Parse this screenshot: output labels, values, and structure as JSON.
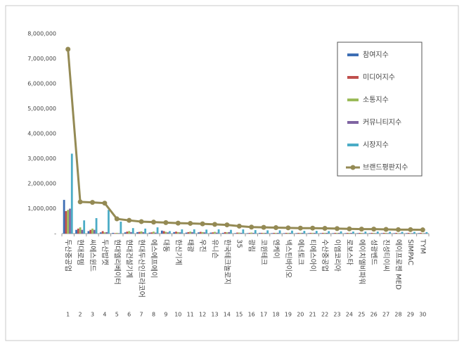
{
  "chart_data": {
    "type": "bar-line",
    "categories": [
      "두산중공업",
      "현대로템",
      "씨에스윈드",
      "두산밥캣",
      "현대엘리베이터",
      "현대건설기계",
      "현대두산인프라코어",
      "에스에프에이",
      "대동",
      "한신기계",
      "태광",
      "우진",
      "유니슨",
      "한국테크놀로지",
      "35",
      "광림",
      "코윈테크",
      "엔케이",
      "넥스틴바이오",
      "에너토크",
      "티에스아이",
      "수산중공업",
      "이엠코리아",
      "로보스타",
      "에이치엘비파워",
      "성광벤드",
      "진성티이씨",
      "에이프로젠 MED",
      "SIMPAC",
      "TYM"
    ],
    "ranks": [
      1,
      2,
      3,
      4,
      5,
      6,
      7,
      8,
      9,
      10,
      11,
      12,
      13,
      14,
      15,
      16,
      17,
      18,
      19,
      20,
      21,
      22,
      23,
      24,
      25,
      26,
      27,
      28,
      29,
      30
    ],
    "series": [
      {
        "name": "참여지수",
        "color": "#3d6eb4",
        "values": [
          1350000,
          150000,
          100000,
          50000,
          30000,
          50000,
          60000,
          40000,
          120000,
          60000,
          40000,
          50000,
          40000,
          30000,
          20000,
          20000,
          30000,
          20000,
          20000,
          20000,
          20000,
          20000,
          20000,
          20000,
          20000,
          20000,
          20000,
          20000,
          20000,
          20000
        ]
      },
      {
        "name": "미디어지수",
        "color": "#c0504d",
        "values": [
          900000,
          200000,
          150000,
          100000,
          20000,
          80000,
          70000,
          50000,
          100000,
          80000,
          60000,
          70000,
          50000,
          60000,
          40000,
          30000,
          30000,
          30000,
          30000,
          30000,
          30000,
          30000,
          30000,
          30000,
          30000,
          30000,
          30000,
          30000,
          30000,
          30000
        ]
      },
      {
        "name": "소통지수",
        "color": "#9bbb59",
        "values": [
          950000,
          250000,
          200000,
          50000,
          30000,
          100000,
          90000,
          80000,
          70000,
          60000,
          80000,
          60000,
          70000,
          50000,
          40000,
          40000,
          30000,
          30000,
          30000,
          30000,
          30000,
          30000,
          30000,
          30000,
          30000,
          30000,
          30000,
          20000,
          20000,
          20000
        ]
      },
      {
        "name": "커뮤니티지수",
        "color": "#7f64a2",
        "values": [
          1000000,
          150000,
          150000,
          60000,
          20000,
          60000,
          60000,
          40000,
          50000,
          50000,
          60000,
          50000,
          40000,
          60000,
          30000,
          30000,
          30000,
          30000,
          30000,
          30000,
          30000,
          30000,
          30000,
          30000,
          20000,
          20000,
          20000,
          20000,
          20000,
          20000
        ]
      },
      {
        "name": "시장지수",
        "color": "#4bacc6",
        "values": [
          3200000,
          530000,
          620000,
          950000,
          480000,
          220000,
          200000,
          250000,
          100000,
          170000,
          170000,
          160000,
          170000,
          150000,
          170000,
          140000,
          130000,
          130000,
          120000,
          110000,
          110000,
          100000,
          90000,
          80000,
          80000,
          80000,
          70000,
          70000,
          70000,
          60000
        ]
      },
      {
        "name": "브랜드평판지수",
        "color": "#948a54",
        "kind": "line",
        "values": [
          7380000,
          1270000,
          1250000,
          1220000,
          590000,
          530000,
          480000,
          460000,
          440000,
          420000,
          410000,
          390000,
          370000,
          350000,
          300000,
          260000,
          250000,
          240000,
          230000,
          220000,
          220000,
          210000,
          200000,
          190000,
          180000,
          180000,
          170000,
          160000,
          160000,
          150000
        ]
      }
    ],
    "ylim": [
      0,
      8000000
    ],
    "yticks": [
      {
        "value": 0,
        "label": "-"
      },
      {
        "value": 1000000,
        "label": "1,000,000"
      },
      {
        "value": 2000000,
        "label": "2,000,000"
      },
      {
        "value": 3000000,
        "label": "3,000,000"
      },
      {
        "value": 4000000,
        "label": "4,000,000"
      },
      {
        "value": 5000000,
        "label": "5,000,000"
      },
      {
        "value": 6000000,
        "label": "6,000,000"
      },
      {
        "value": 7000000,
        "label": "7,000,000"
      },
      {
        "value": 8000000,
        "label": "8,000,000"
      }
    ],
    "legend": "right",
    "grid": false
  }
}
